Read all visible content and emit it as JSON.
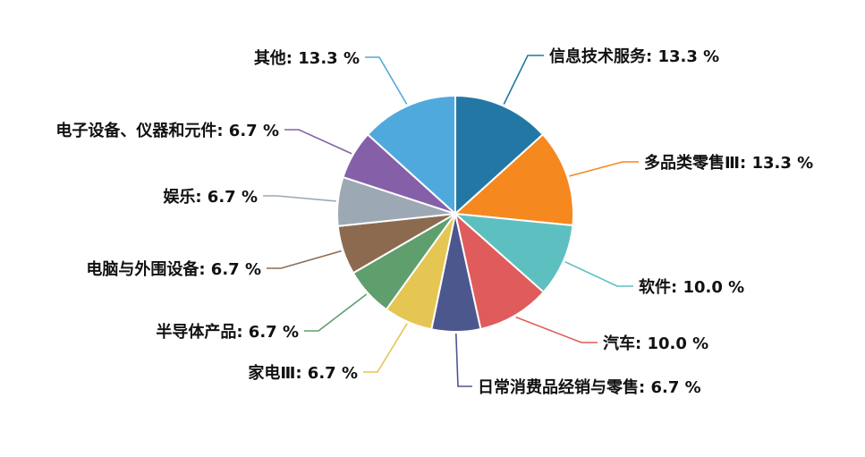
{
  "chart_data": {
    "type": "pie",
    "unit": "%",
    "start_angle_deg": 0,
    "direction": "clockwise",
    "slices": [
      {
        "label": "信息技术服务",
        "value": 13.3,
        "display": "13.3 %",
        "color": "#2377a4"
      },
      {
        "label": "多品类零售Ⅲ",
        "value": 13.3,
        "display": "13.3 %",
        "color": "#f5881f"
      },
      {
        "label": "软件",
        "value": 10.0,
        "display": "10.0 %",
        "color": "#5ebfc0"
      },
      {
        "label": "汽车",
        "value": 10.0,
        "display": "10.0 %",
        "color": "#e05c5c"
      },
      {
        "label": "日常消费品经销与零售",
        "value": 6.7,
        "display": "6.7 %",
        "color": "#4b578d"
      },
      {
        "label": "家电Ⅲ",
        "value": 6.7,
        "display": "6.7 %",
        "color": "#e5c653"
      },
      {
        "label": "半导体产品",
        "value": 6.7,
        "display": "6.7 %",
        "color": "#5f9f6e"
      },
      {
        "label": "电脑与外围设备",
        "value": 6.7,
        "display": "6.7 %",
        "color": "#8c6a4f"
      },
      {
        "label": "娱乐",
        "value": 6.7,
        "display": "6.7 %",
        "color": "#9ca9b5"
      },
      {
        "label": "电子设备、仪器和元件",
        "value": 6.7,
        "display": "6.7 %",
        "color": "#8560a8"
      },
      {
        "label": "其他",
        "value": 13.3,
        "display": "13.3 %",
        "color": "#50a9dc"
      }
    ]
  }
}
